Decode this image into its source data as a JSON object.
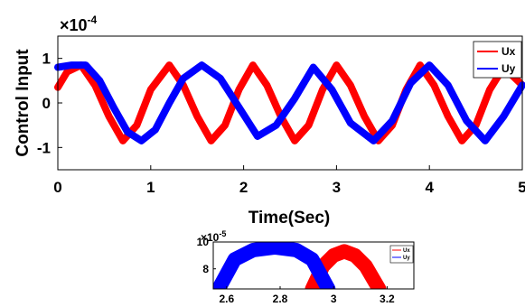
{
  "chart_data": [
    {
      "type": "line",
      "title": "",
      "xlabel": "Time(Sec)",
      "ylabel": "Control Input",
      "xlim": [
        0,
        5
      ],
      "ylim": [
        -1.5,
        1.5
      ],
      "y_multiplier": "×10",
      "y_exponent": "-4",
      "x_ticks": [
        "0",
        "1",
        "2",
        "3",
        "4",
        "5"
      ],
      "y_ticks": [
        "-1",
        "0",
        "1"
      ],
      "grid": false,
      "legend_position": "top-right",
      "series": [
        {
          "name": "Ux",
          "color": "#ff0000",
          "note": "oscillating signal, amplitude ~0.85e-4 with ~0.1e-4 chatter band",
          "x": [
            0.0,
            0.1,
            0.25,
            0.4,
            0.55,
            0.7,
            0.85,
            1.0,
            1.2,
            1.35,
            1.5,
            1.65,
            1.8,
            1.95,
            2.1,
            2.25,
            2.4,
            2.55,
            2.7,
            2.85,
            3.0,
            3.15,
            3.3,
            3.45,
            3.6,
            3.75,
            3.9,
            4.05,
            4.2,
            4.35,
            4.5,
            4.65,
            4.8,
            4.95,
            5.0
          ],
          "y": [
            0.35,
            0.7,
            0.85,
            0.4,
            -0.3,
            -0.85,
            -0.5,
            0.3,
            0.85,
            0.4,
            -0.3,
            -0.85,
            -0.5,
            0.3,
            0.85,
            0.4,
            -0.3,
            -0.85,
            -0.5,
            0.3,
            0.85,
            0.4,
            -0.3,
            -0.85,
            -0.5,
            0.3,
            0.85,
            0.4,
            -0.3,
            -0.85,
            -0.5,
            0.3,
            0.8,
            0.5,
            0.4
          ]
        },
        {
          "name": "Uy",
          "color": "#0000ff",
          "note": "oscillating signal, amplitude ~0.85e-4 with ~0.1e-4 chatter band",
          "x": [
            0.0,
            0.15,
            0.3,
            0.45,
            0.6,
            0.75,
            0.9,
            1.05,
            1.2,
            1.35,
            1.55,
            1.75,
            1.95,
            2.15,
            2.35,
            2.55,
            2.75,
            2.95,
            3.15,
            3.4,
            3.6,
            3.8,
            4.0,
            4.2,
            4.4,
            4.6,
            4.8,
            5.0
          ],
          "y": [
            0.8,
            0.85,
            0.85,
            0.5,
            -0.1,
            -0.65,
            -0.85,
            -0.6,
            0.0,
            0.55,
            0.85,
            0.55,
            -0.1,
            -0.75,
            -0.5,
            0.1,
            0.8,
            0.3,
            -0.45,
            -0.85,
            -0.4,
            0.45,
            0.85,
            0.4,
            -0.4,
            -0.85,
            -0.3,
            0.4
          ]
        }
      ]
    },
    {
      "type": "line",
      "title": "",
      "xlabel": "",
      "ylabel": "",
      "xlim": [
        2.55,
        3.3
      ],
      "ylim": [
        6.5,
        10
      ],
      "y_multiplier": "×10",
      "y_exponent": "-5",
      "x_ticks": [
        "2.6",
        "2.8",
        "3",
        "3.2"
      ],
      "y_ticks": [
        "8",
        "10"
      ],
      "grid": false,
      "legend_position": "top-right",
      "series": [
        {
          "name": "Ux",
          "color": "#ff0000",
          "x": [
            2.92,
            2.96,
            3.0,
            3.04,
            3.08,
            3.12,
            3.17
          ],
          "y": [
            6.5,
            8.2,
            9.0,
            9.3,
            9.0,
            8.2,
            6.5
          ]
        },
        {
          "name": "Uy",
          "color": "#0000ff",
          "x": [
            2.57,
            2.63,
            2.7,
            2.78,
            2.86,
            2.92,
            2.98
          ],
          "y": [
            6.5,
            8.7,
            9.4,
            9.6,
            9.4,
            8.7,
            6.5
          ]
        }
      ]
    }
  ]
}
